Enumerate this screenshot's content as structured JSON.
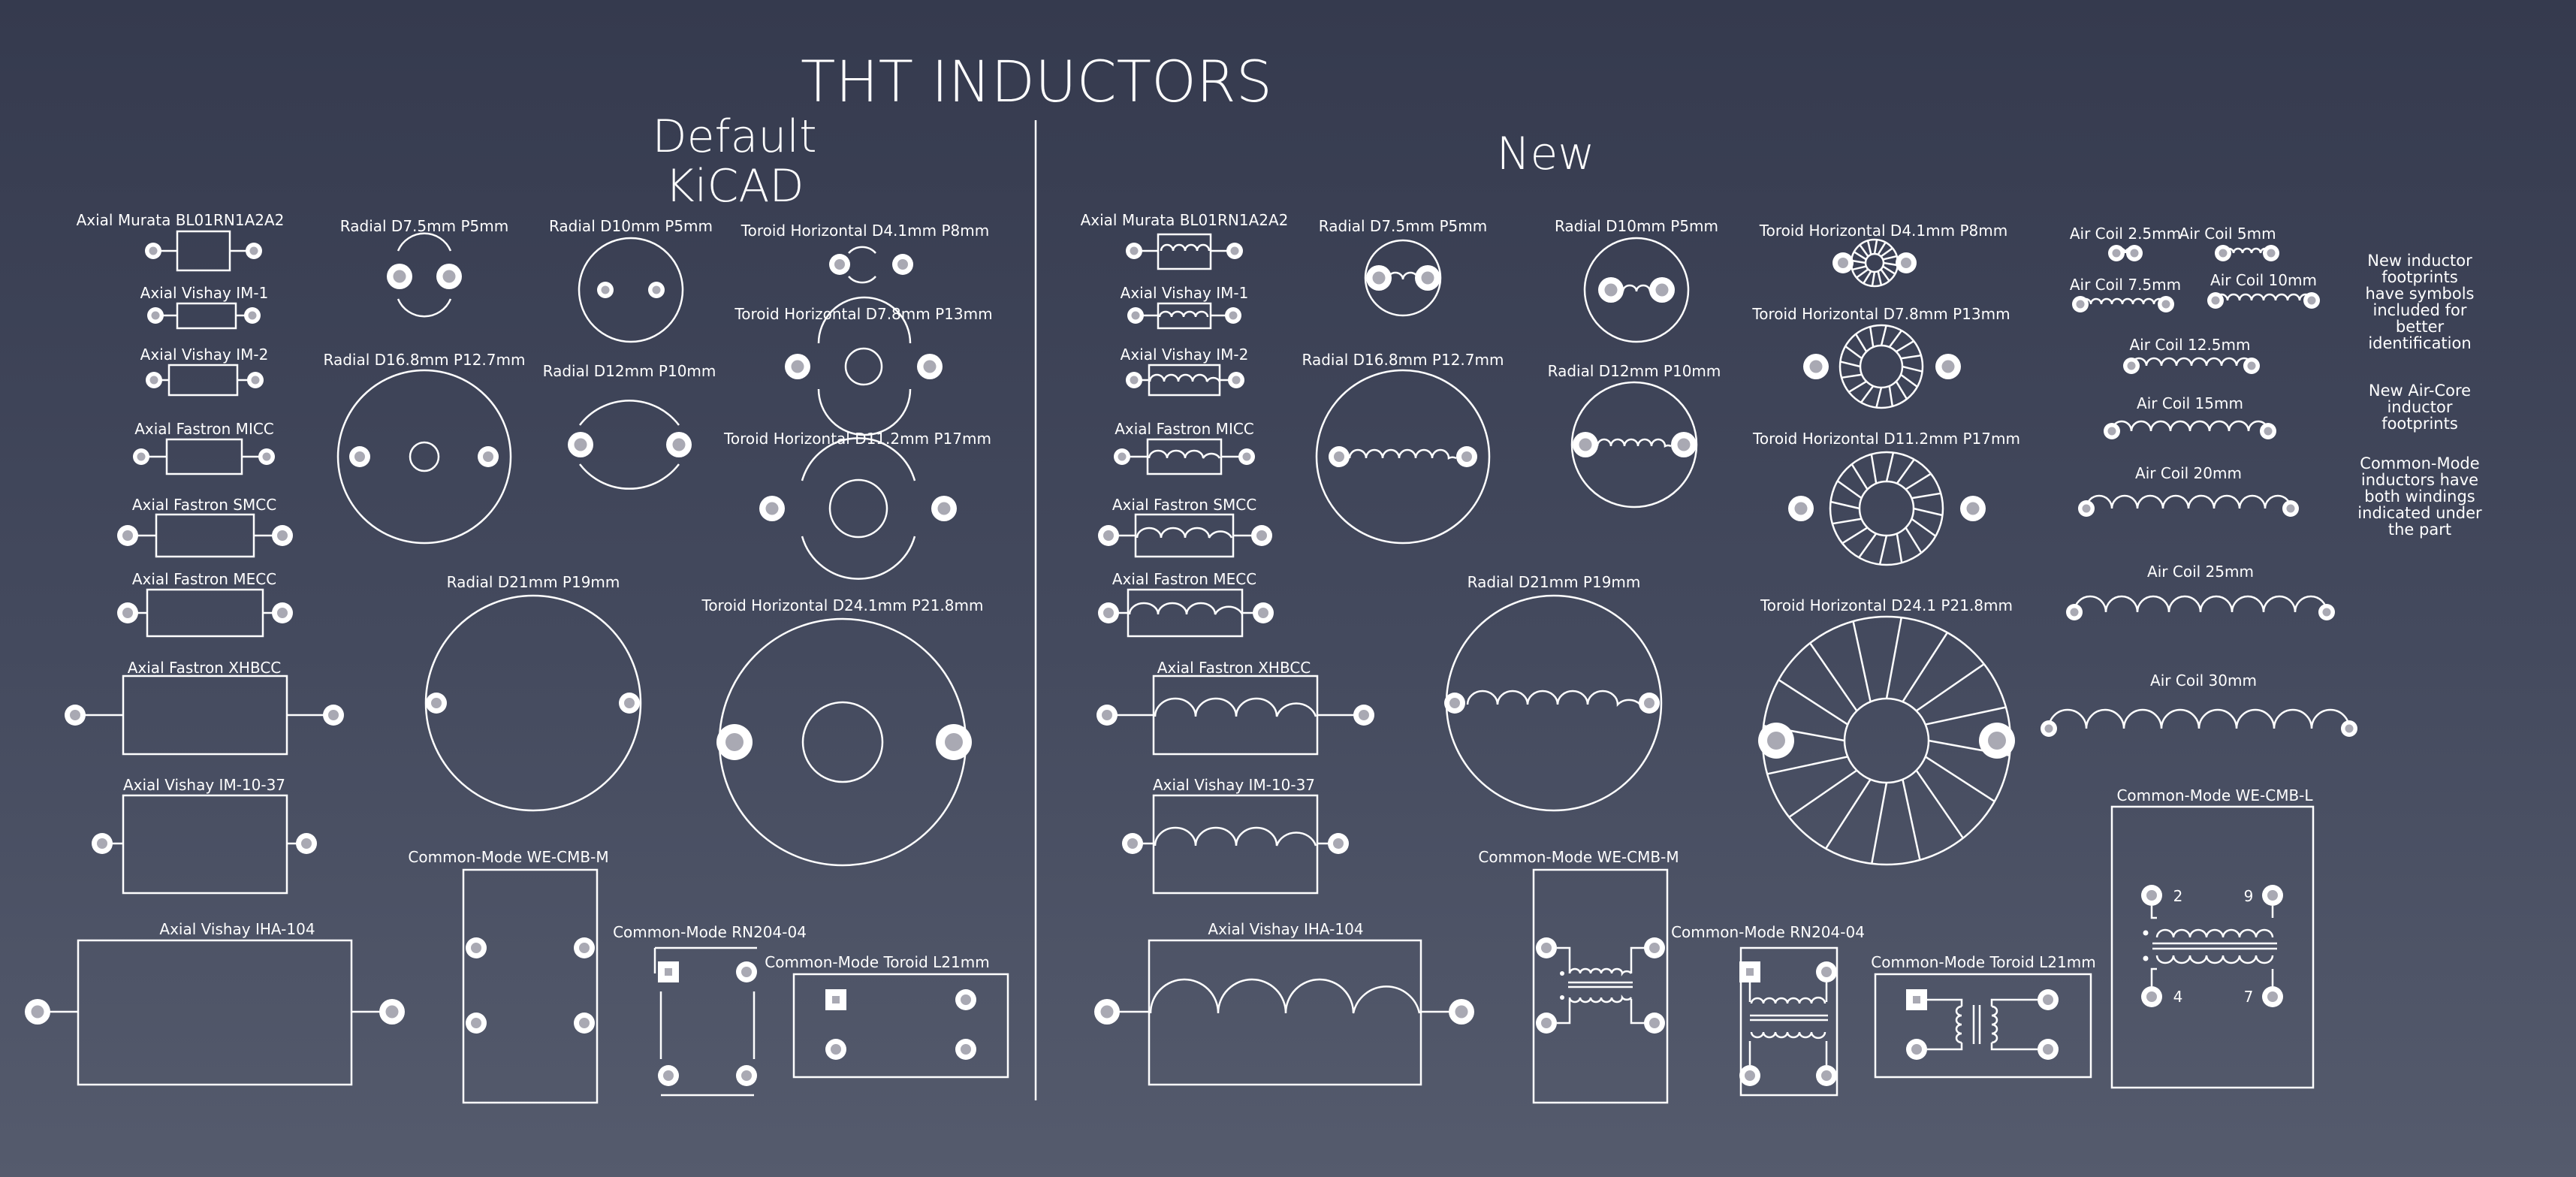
{
  "title": "THT INDUCTORS",
  "section_default": [
    "Default",
    "KiCAD"
  ],
  "section_new": "New",
  "labels": {
    "axial_murata": "Axial Murata BL01RN1A2A2",
    "axial_vishay_im1": "Axial Vishay IM-1",
    "axial_vishay_im2": "Axial Vishay IM-2",
    "axial_fastron_micc": "Axial Fastron MICC",
    "axial_fastron_smcc": "Axial Fastron SMCC",
    "axial_fastron_mecc": "Axial Fastron MECC",
    "axial_fastron_xhbcc": "Axial Fastron XHBCC",
    "axial_vishay_im10": "Axial Vishay IM-10-37",
    "axial_vishay_iha": "Axial Vishay IHA-104",
    "radial_d75": "Radial D7.5mm P5mm",
    "radial_d10": "Radial D10mm P5mm",
    "radial_d168": "Radial D16.8mm P12.7mm",
    "radial_d12": "Radial D12mm P10mm",
    "radial_d21": "Radial D21mm P19mm",
    "toroid_d41": "Toroid Horizontal D4.1mm P8mm",
    "toroid_d78": "Toroid Horizontal D7.8mm P13mm",
    "toroid_d112": "Toroid Horizontal D11.2mm P17mm",
    "toroid_d241_default": "Toroid Horizontal D24.1mm P21.8mm",
    "toroid_d241_new": "Toroid Horizontal D24.1 P21.8mm",
    "cm_wecmbm": "Common-Mode WE-CMB-M",
    "cm_rn204": "Common-Mode RN204-04",
    "cm_toroid": "Common-Mode Toroid L21mm",
    "cm_wecmbl": "Common-Mode WE-CMB-L",
    "air_25": "Air Coil 2.5mm",
    "air_5": "Air Coil 5mm",
    "air_75": "Air Coil 7.5mm",
    "air_10": "Air Coil 10mm",
    "air_125": "Air Coil 12.5mm",
    "air_15": "Air Coil 15mm",
    "air_20": "Air Coil 20mm",
    "air_25mm": "Air Coil 25mm",
    "air_30": "Air Coil 30mm"
  },
  "notes": {
    "symbols": [
      "New inductor",
      "footprints",
      "have symbols",
      "included for",
      "better",
      "identification"
    ],
    "aircore": [
      "New Air-Core",
      "inductor",
      "footprints"
    ],
    "commonmode": [
      "Common-Mode",
      "inductors have",
      "both windings",
      "indicated under",
      "the part"
    ]
  },
  "pin_labels": {
    "p2": "2",
    "p9": "9",
    "p4": "4",
    "p7": "7"
  },
  "colors": {
    "background_top": "#353a4e",
    "background_bottom": "#555b6d",
    "silkscreen": "#ffffff",
    "drill": "#a9a9b3"
  }
}
